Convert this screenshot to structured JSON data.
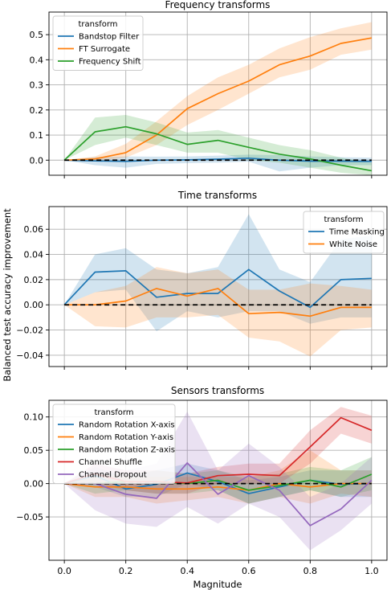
{
  "figure": {
    "ylabel": "Balanced test accuracy improvement",
    "xlabel": "Magnitude"
  },
  "chart_data": [
    {
      "type": "line",
      "title": "Frequency transforms",
      "xlabel": "",
      "ylabel": "Balanced test accuracy improvement",
      "xlim": [
        -0.05,
        1.05
      ],
      "ylim": [
        -0.06,
        0.59
      ],
      "x_ticks": [
        0.0,
        0.2,
        0.4,
        0.6,
        0.8,
        1.0
      ],
      "y_ticks": [
        0.0,
        0.1,
        0.2,
        0.3,
        0.4,
        0.5
      ],
      "y_tick_labels": [
        "0.0",
        "0.1",
        "0.2",
        "0.3",
        "0.4",
        "0.5"
      ],
      "grid": true,
      "legend": {
        "title": "transform",
        "position": "top-left"
      },
      "baseline": {
        "y": 0,
        "style": "dashed",
        "color": "#000000"
      },
      "x": [
        0.0,
        0.1,
        0.2,
        0.3,
        0.4,
        0.5,
        0.6,
        0.7,
        0.8,
        0.9,
        1.0
      ],
      "series": [
        {
          "name": "Bandstop Filter",
          "color": "#1f77b4",
          "values": [
            0.0,
            -0.003,
            -0.005,
            0.0,
            0.001,
            0.004,
            0.008,
            0.0,
            -0.004,
            -0.004,
            -0.005
          ],
          "lower": [
            0.0,
            -0.02,
            -0.03,
            -0.015,
            -0.012,
            -0.01,
            -0.006,
            -0.045,
            -0.03,
            -0.02,
            -0.02
          ],
          "upper": [
            0.0,
            0.012,
            0.015,
            0.014,
            0.015,
            0.018,
            0.022,
            0.02,
            0.015,
            0.012,
            0.01
          ]
        },
        {
          "name": "FT Surrogate",
          "color": "#ff7f0e",
          "values": [
            0.0,
            0.005,
            0.03,
            0.1,
            0.205,
            0.265,
            0.315,
            0.38,
            0.415,
            0.465,
            0.487
          ],
          "lower": [
            0.0,
            -0.005,
            0.01,
            0.06,
            0.14,
            0.2,
            0.265,
            0.33,
            0.36,
            0.42,
            0.44
          ],
          "upper": [
            0.0,
            0.015,
            0.065,
            0.155,
            0.255,
            0.33,
            0.38,
            0.445,
            0.49,
            0.525,
            0.55
          ]
        },
        {
          "name": "Frequency Shift",
          "color": "#2ca02c",
          "values": [
            0.0,
            0.113,
            0.133,
            0.105,
            0.063,
            0.079,
            0.051,
            0.024,
            0.005,
            -0.02,
            -0.042
          ],
          "lower": [
            0.0,
            0.06,
            0.09,
            0.06,
            0.03,
            0.03,
            0.0,
            -0.01,
            -0.03,
            -0.05,
            -0.06
          ],
          "upper": [
            0.0,
            0.17,
            0.18,
            0.15,
            0.11,
            0.12,
            0.09,
            0.06,
            0.04,
            0.01,
            -0.01
          ]
        }
      ]
    },
    {
      "type": "line",
      "title": "Time transforms",
      "xlabel": "",
      "ylabel": "Balanced test accuracy improvement",
      "xlim": [
        -0.05,
        1.05
      ],
      "ylim": [
        -0.049,
        0.078
      ],
      "x_ticks": [
        0.0,
        0.2,
        0.4,
        0.6,
        0.8,
        1.0
      ],
      "y_ticks": [
        -0.04,
        -0.02,
        0.0,
        0.02,
        0.04,
        0.06
      ],
      "y_tick_labels": [
        "−0.04",
        "−0.02",
        "0.00",
        "0.02",
        "0.04",
        "0.06"
      ],
      "grid": true,
      "legend": {
        "title": "transform",
        "position": "top-right"
      },
      "baseline": {
        "y": 0,
        "style": "dashed",
        "color": "#000000"
      },
      "x": [
        0.0,
        0.1,
        0.2,
        0.3,
        0.4,
        0.5,
        0.6,
        0.7,
        0.8,
        0.9,
        1.0
      ],
      "series": [
        {
          "name": "Time Masking",
          "color": "#1f77b4",
          "values": [
            0.0,
            0.026,
            0.027,
            0.006,
            0.009,
            0.009,
            0.028,
            0.011,
            -0.002,
            0.02,
            0.021
          ],
          "lower": [
            0.0,
            0.01,
            0.012,
            -0.021,
            -0.005,
            -0.01,
            -0.005,
            -0.005,
            -0.015,
            -0.01,
            -0.01
          ],
          "upper": [
            0.0,
            0.04,
            0.045,
            0.028,
            0.025,
            0.03,
            0.072,
            0.028,
            0.018,
            0.052,
            0.055
          ]
        },
        {
          "name": "White Noise",
          "color": "#ff7f0e",
          "values": [
            0.0,
            0.0,
            0.003,
            0.013,
            0.007,
            0.013,
            -0.007,
            -0.006,
            -0.009,
            -0.002,
            -0.002
          ],
          "lower": [
            0.0,
            -0.017,
            -0.018,
            -0.01,
            -0.01,
            -0.008,
            -0.026,
            -0.029,
            -0.041,
            -0.02,
            -0.018
          ],
          "upper": [
            0.0,
            0.01,
            0.015,
            0.03,
            0.025,
            0.028,
            0.012,
            0.012,
            0.017,
            0.015,
            0.012
          ]
        }
      ]
    },
    {
      "type": "line",
      "title": "Sensors transforms",
      "xlabel": "Magnitude",
      "ylabel": "Balanced test accuracy improvement",
      "xlim": [
        -0.05,
        1.05
      ],
      "ylim": [
        -0.115,
        0.125
      ],
      "x_ticks": [
        0.0,
        0.2,
        0.4,
        0.6,
        0.8,
        1.0
      ],
      "x_tick_labels": [
        "0.0",
        "0.2",
        "0.4",
        "0.6",
        "0.8",
        "1.0"
      ],
      "y_ticks": [
        -0.05,
        0.0,
        0.05,
        0.1
      ],
      "y_tick_labels": [
        "−0.05",
        "0.00",
        "0.05",
        "0.10"
      ],
      "grid": true,
      "legend": {
        "title": "transform",
        "position": "top-left"
      },
      "baseline": {
        "y": 0,
        "style": "dashed",
        "color": "#000000"
      },
      "x": [
        0.0,
        0.1,
        0.2,
        0.3,
        0.4,
        0.5,
        0.6,
        0.7,
        0.8,
        0.9,
        1.0
      ],
      "series": [
        {
          "name": "Random Rotation X-axis",
          "color": "#1f77b4",
          "values": [
            0.0,
            0.012,
            -0.008,
            -0.001,
            0.016,
            0.003,
            -0.015,
            -0.005,
            0.005,
            -0.001,
            0.0
          ],
          "lower": [
            0.0,
            -0.005,
            -0.02,
            -0.02,
            0.0,
            -0.01,
            -0.03,
            -0.02,
            -0.01,
            -0.02,
            -0.02
          ],
          "upper": [
            0.0,
            0.025,
            0.01,
            0.02,
            0.03,
            0.02,
            0.005,
            0.01,
            0.02,
            0.02,
            0.02
          ]
        },
        {
          "name": "Random Rotation Y-axis",
          "color": "#ff7f0e",
          "values": [
            0.0,
            -0.005,
            -0.005,
            -0.008,
            -0.008,
            -0.005,
            -0.01,
            0.0,
            -0.005,
            0.0,
            0.0
          ],
          "lower": [
            0.0,
            -0.02,
            -0.02,
            -0.03,
            -0.025,
            -0.02,
            -0.03,
            -0.02,
            -0.03,
            -0.015,
            -0.02
          ],
          "upper": [
            0.0,
            0.015,
            0.01,
            0.01,
            0.01,
            0.01,
            0.01,
            0.02,
            0.05,
            0.02,
            0.02
          ]
        },
        {
          "name": "Random Rotation Z-axis",
          "color": "#2ca02c",
          "values": [
            0.0,
            0.0,
            0.003,
            0.003,
            0.0,
            0.005,
            -0.01,
            -0.003,
            0.005,
            -0.005,
            0.014
          ],
          "lower": [
            0.0,
            -0.015,
            -0.01,
            -0.015,
            -0.015,
            -0.01,
            -0.03,
            -0.02,
            -0.01,
            -0.02,
            -0.01
          ],
          "upper": [
            0.0,
            0.015,
            0.015,
            0.02,
            0.015,
            0.02,
            0.01,
            0.015,
            0.025,
            0.02,
            0.04
          ]
        },
        {
          "name": "Channel Shuffle",
          "color": "#d62728",
          "values": [
            0.0,
            0.015,
            0.003,
            0.003,
            0.001,
            0.012,
            0.014,
            0.012,
            0.055,
            0.099,
            0.08
          ],
          "lower": [
            0.0,
            0.0,
            -0.01,
            -0.015,
            -0.015,
            0.0,
            0.0,
            0.0,
            0.03,
            0.075,
            0.06
          ],
          "upper": [
            0.0,
            0.03,
            0.02,
            0.02,
            0.015,
            0.025,
            0.03,
            0.03,
            0.08,
            0.115,
            0.102
          ]
        },
        {
          "name": "Channel Dropout",
          "color": "#9467bd",
          "values": [
            0.0,
            0.0,
            -0.016,
            -0.022,
            0.031,
            -0.016,
            0.012,
            -0.01,
            -0.063,
            -0.038,
            0.005
          ],
          "lower": [
            0.0,
            -0.04,
            -0.06,
            -0.065,
            -0.035,
            -0.06,
            -0.03,
            -0.05,
            -0.1,
            -0.07,
            -0.03
          ],
          "upper": [
            0.0,
            0.03,
            0.02,
            0.03,
            0.108,
            0.02,
            0.06,
            0.025,
            -0.02,
            0.0,
            0.04
          ]
        }
      ]
    }
  ]
}
